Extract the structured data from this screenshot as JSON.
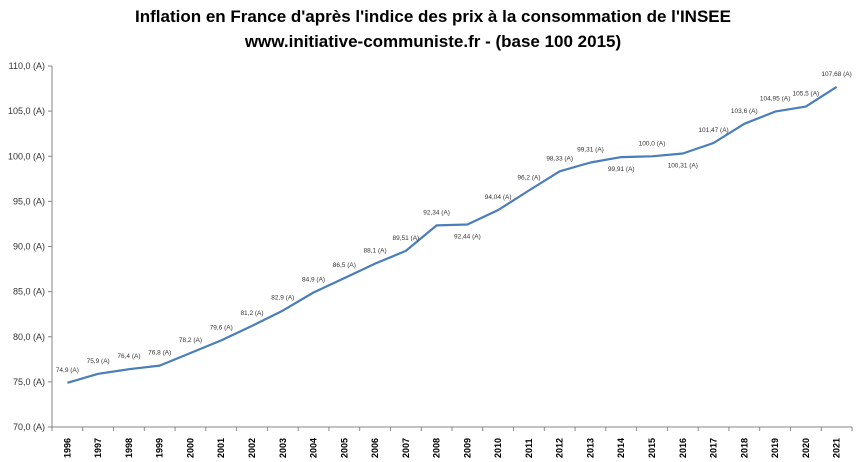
{
  "chart_data": {
    "type": "line",
    "title": "Inflation en France d'après l'indice des prix à la consommation  de l'INSEE",
    "subtitle": "www.initiative-communiste.fr  - (base 100 2015)",
    "xlabel": "",
    "ylabel": "",
    "ylim": [
      70,
      110
    ],
    "yticks": [
      "70,0 (A)",
      "75,0 (A)",
      "80,0 (A)",
      "85,0 (A)",
      "90,0 (A)",
      "95,0 (A)",
      "100,0 (A)",
      "105,0 (A)",
      "110,0 (A)"
    ],
    "grid": false,
    "line_color": "#4a7ebb",
    "categories": [
      "1996",
      "1997",
      "1998",
      "1999",
      "2000",
      "2001",
      "2002",
      "2003",
      "2004",
      "2005",
      "2006",
      "2007",
      "2008",
      "2009",
      "2010",
      "2011",
      "2012",
      "2013",
      "2014",
      "2015",
      "2016",
      "2017",
      "2018",
      "2019",
      "2020",
      "2021"
    ],
    "values": [
      74.9,
      75.9,
      76.4,
      76.8,
      78.2,
      79.6,
      81.2,
      82.9,
      84.9,
      86.5,
      88.1,
      89.51,
      92.34,
      92.44,
      94.04,
      96.2,
      98.33,
      99.31,
      99.91,
      100.0,
      100.31,
      101.47,
      103.6,
      104.95,
      105.5,
      107.68
    ],
    "data_labels": [
      "74,9 (A)",
      "75,9 (A)",
      "76,4 (A)",
      "76,8 (A)",
      "78,2 (A)",
      "79,6 (A)",
      "81,2 (A)",
      "82,9 (A)",
      "84,9 (A)",
      "86,5 (A)",
      "88,1 (A)",
      "89,51 (A)",
      "92,34 (A)",
      "92,44 (A)",
      "94,04 (A)",
      "96,2 (A)",
      "98,33 (A)",
      "99,31 (A)",
      "99,91 (A)",
      "100,0 (A)",
      "100,31 (A)",
      "101,47 (A)",
      "103,6 (A)",
      "104,95 (A)",
      "105,5 (A)",
      "107,68 (A)"
    ]
  }
}
